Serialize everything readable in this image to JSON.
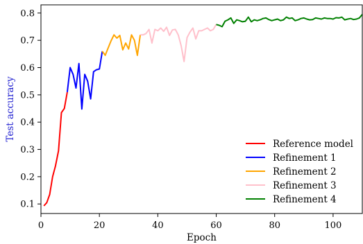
{
  "chart_data": {
    "type": "line",
    "title": "",
    "xlabel": "Epoch",
    "ylabel": "Test accuracy",
    "ylabel_color": "#1f1fd0",
    "xlim": [
      0,
      110
    ],
    "ylim": [
      0.065,
      0.83
    ],
    "xticks": [
      0,
      20,
      40,
      60,
      80,
      100
    ],
    "yticks": [
      0.1,
      0.2,
      0.3,
      0.4,
      0.5,
      0.6,
      0.7,
      0.8
    ],
    "grid": false,
    "legend_position": "bottom-right",
    "series": [
      {
        "name": "Reference model",
        "color": "#ff0000",
        "x": [
          1,
          2,
          3,
          4,
          5,
          6,
          7,
          8,
          9
        ],
        "y": [
          0.093,
          0.105,
          0.135,
          0.2,
          0.24,
          0.295,
          0.435,
          0.45,
          0.51
        ]
      },
      {
        "name": "Refinement 1",
        "color": "#0000ff",
        "x": [
          9,
          10,
          11,
          12,
          13,
          14,
          15,
          16,
          17,
          18,
          19,
          20,
          21
        ],
        "y": [
          0.51,
          0.6,
          0.575,
          0.525,
          0.615,
          0.448,
          0.575,
          0.55,
          0.485,
          0.585,
          0.592,
          0.595,
          0.66
        ]
      },
      {
        "name": "Refinement 2",
        "color": "#ffa500",
        "x": [
          21,
          22,
          23,
          24,
          25,
          26,
          27,
          28,
          29,
          30,
          31,
          32,
          33,
          34
        ],
        "y": [
          0.66,
          0.645,
          0.672,
          0.698,
          0.72,
          0.708,
          0.718,
          0.665,
          0.69,
          0.668,
          0.72,
          0.7,
          0.645,
          0.72
        ]
      },
      {
        "name": "Refinement 3",
        "color": "#ffc0cb",
        "x": [
          34,
          35,
          36,
          37,
          38,
          39,
          40,
          41,
          42,
          43,
          44,
          45,
          46,
          47,
          48,
          49,
          50,
          51,
          52,
          53,
          54,
          55,
          56,
          57,
          58,
          59,
          60
        ],
        "y": [
          0.72,
          0.72,
          0.725,
          0.74,
          0.69,
          0.74,
          0.735,
          0.745,
          0.733,
          0.748,
          0.718,
          0.738,
          0.74,
          0.72,
          0.68,
          0.622,
          0.71,
          0.73,
          0.745,
          0.705,
          0.735,
          0.735,
          0.74,
          0.745,
          0.735,
          0.74,
          0.758
        ]
      },
      {
        "name": "Refinement 4",
        "color": "#008000",
        "x": [
          60,
          61,
          62,
          63,
          64,
          65,
          66,
          67,
          68,
          69,
          70,
          71,
          72,
          73,
          74,
          75,
          76,
          77,
          78,
          79,
          80,
          81,
          82,
          83,
          84,
          85,
          86,
          87,
          88,
          89,
          90,
          91,
          92,
          93,
          94,
          95,
          96,
          97,
          98,
          99,
          100,
          101,
          102,
          103,
          104,
          105,
          106,
          107,
          108,
          109,
          110
        ],
        "y": [
          0.758,
          0.755,
          0.75,
          0.77,
          0.775,
          0.782,
          0.762,
          0.775,
          0.772,
          0.768,
          0.77,
          0.785,
          0.768,
          0.775,
          0.772,
          0.775,
          0.78,
          0.782,
          0.776,
          0.772,
          0.775,
          0.778,
          0.772,
          0.775,
          0.785,
          0.78,
          0.782,
          0.772,
          0.775,
          0.78,
          0.782,
          0.778,
          0.775,
          0.776,
          0.782,
          0.78,
          0.778,
          0.782,
          0.78,
          0.78,
          0.778,
          0.783,
          0.782,
          0.785,
          0.775,
          0.778,
          0.78,
          0.776,
          0.778,
          0.782,
          0.795
        ]
      }
    ]
  }
}
